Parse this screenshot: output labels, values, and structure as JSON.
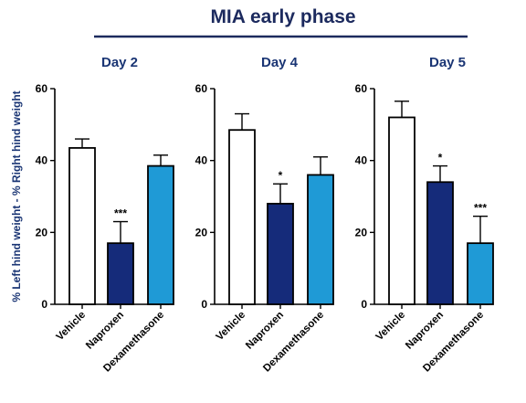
{
  "title": "MIA early phase",
  "colors": {
    "title": "#1c2a5e",
    "panel_title": "#1a3574",
    "vehicle": "#ffffff",
    "naproxen": "#152b7a",
    "dexamethasone": "#1f9ad6",
    "axis": "#000000"
  },
  "chart_data": [
    {
      "type": "bar",
      "title": "Day 2",
      "categories": [
        "Vehicle",
        "Naproxen",
        "Dexamethasone"
      ],
      "values": [
        43.5,
        17,
        38.5
      ],
      "errors": [
        2.5,
        6,
        3
      ],
      "significance": [
        "",
        "***",
        ""
      ],
      "ylabel": "% Left hind weight - % Right hind weight",
      "ylim": [
        0,
        60
      ],
      "yticks": [
        0,
        20,
        40,
        60
      ]
    },
    {
      "type": "bar",
      "title": "Day 4",
      "categories": [
        "Vehicle",
        "Naproxen",
        "Dexamethasone"
      ],
      "values": [
        48.5,
        28,
        36
      ],
      "errors": [
        4.5,
        5.5,
        5
      ],
      "significance": [
        "",
        "*",
        ""
      ],
      "ylabel": "",
      "ylim": [
        0,
        60
      ],
      "yticks": [
        0,
        20,
        40,
        60
      ]
    },
    {
      "type": "bar",
      "title": "Day 5",
      "categories": [
        "Vehicle",
        "Naproxen",
        "Dexamethasone"
      ],
      "values": [
        52,
        34,
        17
      ],
      "errors": [
        4.5,
        4.5,
        7.5
      ],
      "significance": [
        "",
        "*",
        "***"
      ],
      "ylabel": "",
      "ylim": [
        0,
        60
      ],
      "yticks": [
        0,
        20,
        40,
        60
      ]
    }
  ]
}
